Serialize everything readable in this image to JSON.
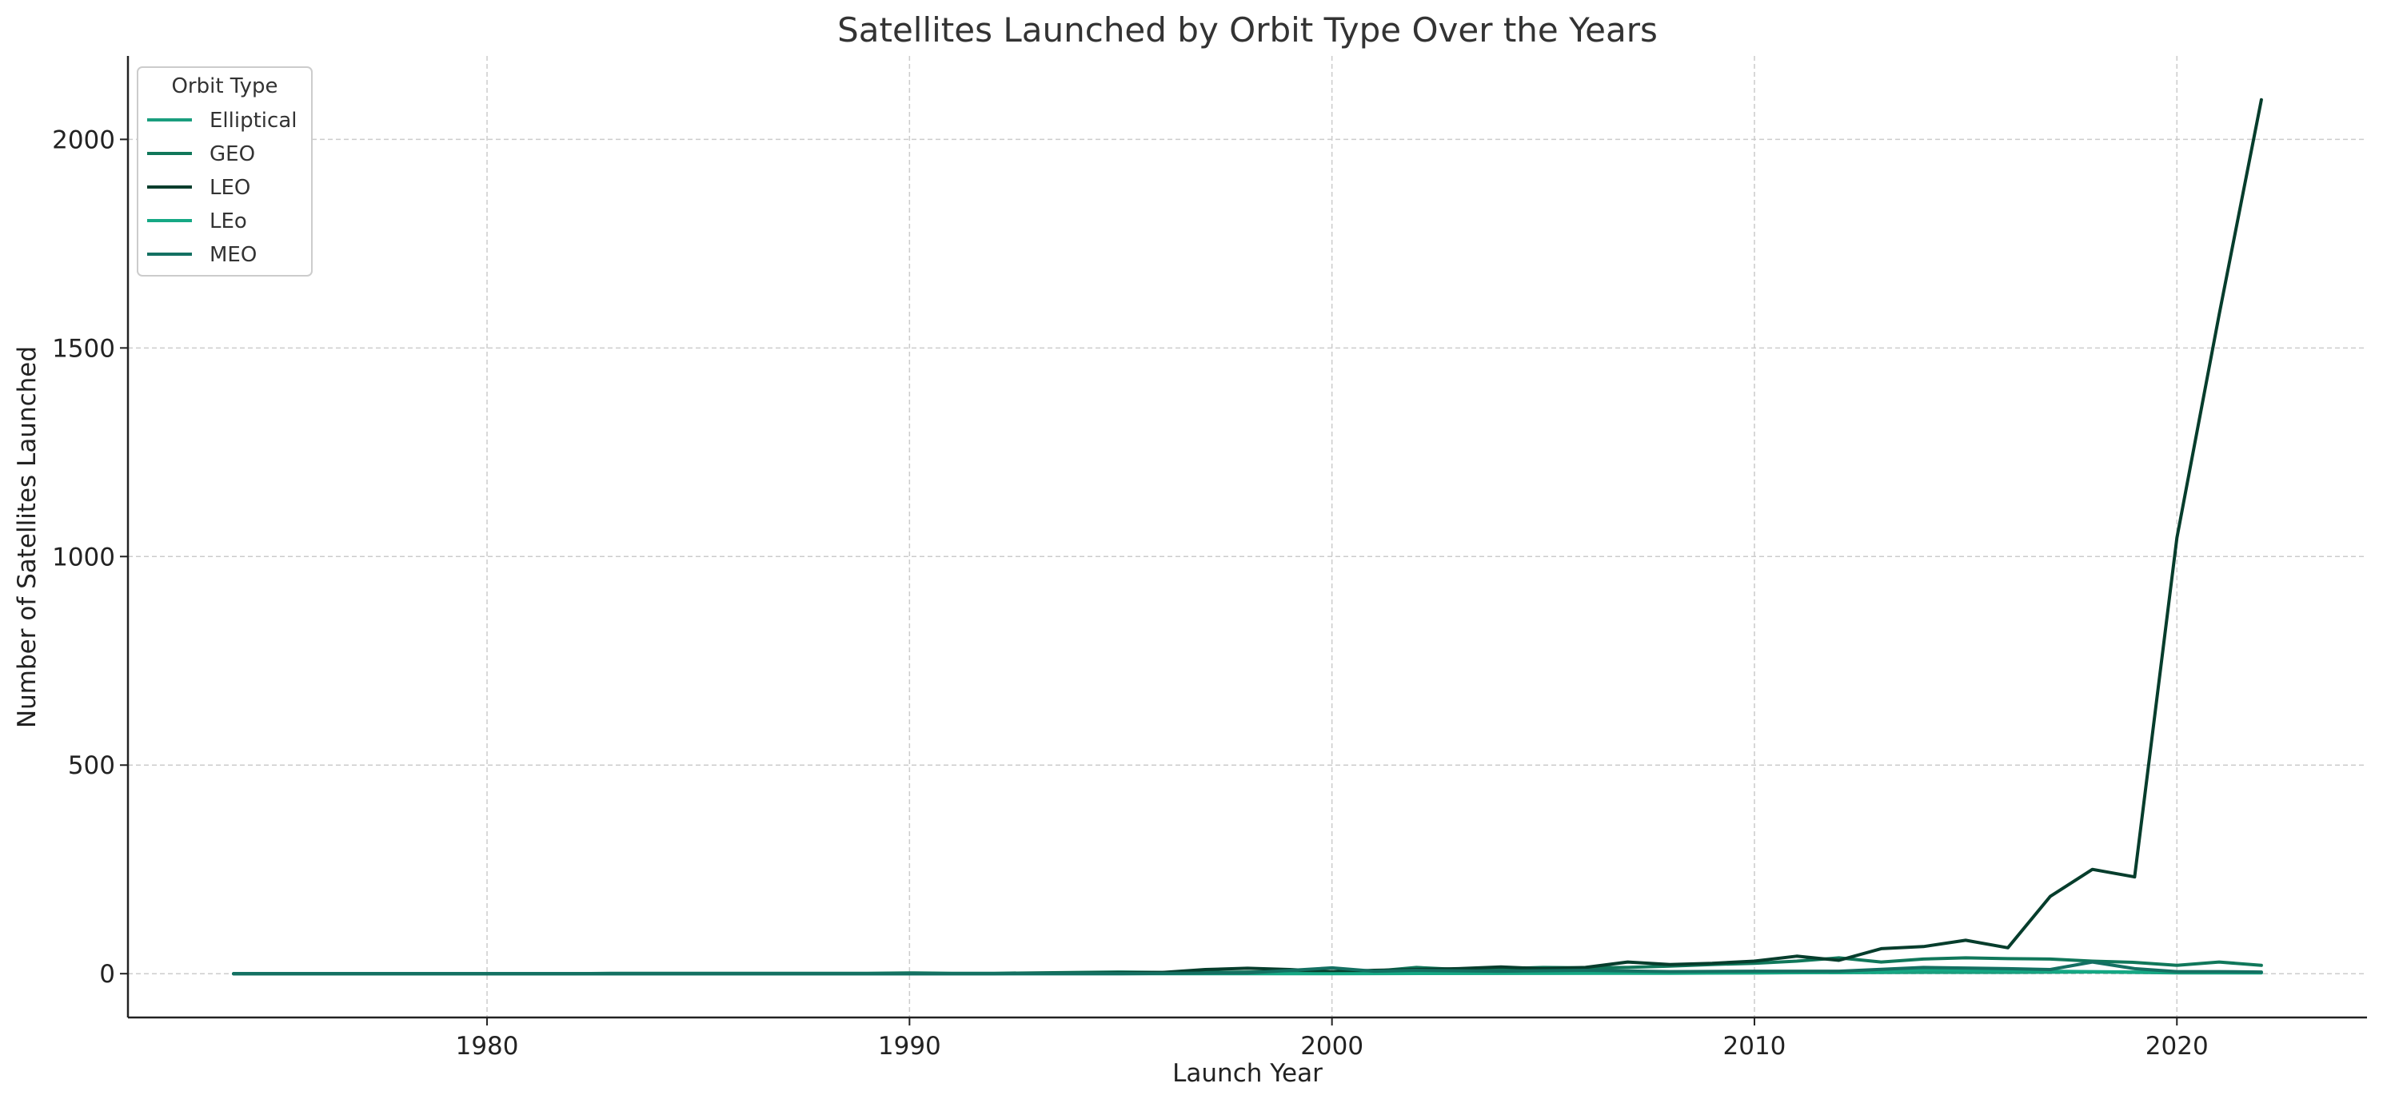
{
  "chart_data": {
    "type": "line",
    "title": "Satellites Launched by Orbit Type Over the Years",
    "xlabel": "Launch Year",
    "ylabel": "Number of Satellites Launched",
    "xlim": [
      1971.5,
      2024.5
    ],
    "ylim": [
      -105,
      2200
    ],
    "xticks": [
      1980,
      1990,
      2000,
      2010,
      2020
    ],
    "yticks": [
      0,
      500,
      1000,
      1500,
      2000
    ],
    "grid": true,
    "legend": {
      "title": "Orbit Type",
      "placement": "top-left"
    },
    "series": [
      {
        "name": "Elliptical",
        "color": "#1a9e7e",
        "x": [
          1974,
          1990,
          2000,
          2005,
          2010,
          2014,
          2016,
          2018,
          2019,
          2020,
          2022
        ],
        "values": [
          0,
          0,
          1,
          1,
          2,
          3,
          3,
          4,
          3,
          2,
          2
        ]
      },
      {
        "name": "GEO",
        "color": "#10775a",
        "x": [
          1974,
          1975,
          1976,
          1977,
          1978,
          1979,
          1980,
          1981,
          1982,
          1983,
          1984,
          1985,
          1986,
          1987,
          1988,
          1989,
          1990,
          1991,
          1992,
          1993,
          1994,
          1995,
          1996,
          1997,
          1998,
          1999,
          2000,
          2001,
          2002,
          2003,
          2004,
          2005,
          2006,
          2007,
          2008,
          2009,
          2010,
          2011,
          2012,
          2013,
          2014,
          2015,
          2016,
          2017,
          2018,
          2019,
          2020,
          2021,
          2022
        ],
        "values": [
          0,
          0,
          0,
          0,
          0,
          0,
          0,
          0,
          0,
          1,
          1,
          1,
          1,
          1,
          1,
          1,
          2,
          1,
          1,
          2,
          3,
          4,
          3,
          3,
          4,
          5,
          5,
          6,
          15,
          10,
          12,
          15,
          14,
          15,
          18,
          22,
          25,
          30,
          38,
          28,
          35,
          38,
          36,
          35,
          30,
          27,
          20,
          28,
          20
        ]
      },
      {
        "name": "LEO",
        "color": "#063d2c",
        "x": [
          1974,
          1975,
          1976,
          1977,
          1978,
          1979,
          1980,
          1981,
          1982,
          1983,
          1984,
          1985,
          1986,
          1987,
          1988,
          1989,
          1990,
          1991,
          1992,
          1993,
          1994,
          1995,
          1996,
          1997,
          1998,
          1999,
          2000,
          2001,
          2002,
          2003,
          2004,
          2005,
          2006,
          2007,
          2008,
          2009,
          2010,
          2011,
          2012,
          2013,
          2014,
          2015,
          2016,
          2017,
          2018,
          2019,
          2020,
          2021,
          2022
        ],
        "values": [
          0,
          0,
          0,
          0,
          0,
          0,
          0,
          0,
          0,
          0,
          0,
          0,
          0,
          0,
          0,
          0,
          0,
          0,
          0,
          1,
          1,
          2,
          3,
          10,
          13,
          10,
          5,
          8,
          10,
          12,
          16,
          12,
          15,
          28,
          22,
          25,
          30,
          42,
          32,
          60,
          65,
          80,
          62,
          185,
          250,
          232,
          1045,
          1580,
          2095
        ]
      },
      {
        "name": "LEo",
        "color": "#15a884",
        "x": [
          1974,
          1980,
          1990,
          1995,
          2000,
          2005,
          2008,
          2010,
          2012,
          2013,
          2014,
          2015,
          2016,
          2017,
          2018,
          2019,
          2020,
          2021,
          2022
        ],
        "values": [
          0,
          0,
          0,
          0,
          0,
          1,
          1,
          2,
          3,
          4,
          10,
          8,
          8,
          6,
          5,
          4,
          4,
          3,
          3
        ]
      },
      {
        "name": "MEO",
        "color": "#147062",
        "x": [
          1974,
          1980,
          1990,
          1995,
          1998,
          2000,
          2001,
          2002,
          2004,
          2006,
          2008,
          2010,
          2012,
          2014,
          2016,
          2017,
          2018,
          2019,
          2020,
          2021,
          2022
        ],
        "values": [
          0,
          0,
          0,
          0,
          2,
          14,
          6,
          8,
          6,
          8,
          5,
          6,
          6,
          15,
          12,
          10,
          28,
          12,
          5,
          5,
          4
        ]
      }
    ]
  }
}
